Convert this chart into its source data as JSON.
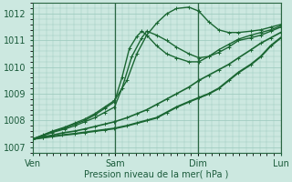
{
  "background_color": "#cce8e0",
  "plot_bg_color": "#cce8e0",
  "grid_color": "#99c8bc",
  "line_color": "#1a6632",
  "xlabel": "Pression niveau de la mer( hPa )",
  "ylim": [
    1006.8,
    1012.4
  ],
  "yticks": [
    1007,
    1008,
    1009,
    1010,
    1011,
    1012
  ],
  "xtick_positions": [
    0,
    0.333,
    0.667,
    1.0
  ],
  "xtick_labels": [
    "Ven",
    "Sam",
    "Dim",
    "Lun"
  ],
  "vlines": [
    0.333,
    0.667,
    1.0
  ],
  "lines": [
    {
      "x": [
        0.0,
        0.04,
        0.08,
        0.12,
        0.17,
        0.21,
        0.25,
        0.29,
        0.33,
        0.38,
        0.42,
        0.46,
        0.5,
        0.54,
        0.58,
        0.63,
        0.67,
        0.71,
        0.75,
        0.79,
        0.83,
        0.88,
        0.92,
        0.96,
        1.0
      ],
      "y": [
        1007.3,
        1007.35,
        1007.4,
        1007.45,
        1007.5,
        1007.55,
        1007.6,
        1007.65,
        1007.7,
        1007.8,
        1007.9,
        1008.0,
        1008.1,
        1008.3,
        1008.5,
        1008.7,
        1008.85,
        1009.0,
        1009.2,
        1009.5,
        1009.8,
        1010.1,
        1010.4,
        1010.8,
        1011.1
      ],
      "lw": 1.5
    },
    {
      "x": [
        0.0,
        0.04,
        0.08,
        0.12,
        0.17,
        0.21,
        0.25,
        0.29,
        0.33,
        0.38,
        0.42,
        0.46,
        0.5,
        0.54,
        0.58,
        0.63,
        0.67,
        0.71,
        0.75,
        0.79,
        0.83,
        0.88,
        0.92,
        0.96,
        1.0
      ],
      "y": [
        1007.3,
        1007.38,
        1007.45,
        1007.53,
        1007.6,
        1007.68,
        1007.77,
        1007.86,
        1007.95,
        1008.1,
        1008.25,
        1008.4,
        1008.6,
        1008.8,
        1009.0,
        1009.25,
        1009.5,
        1009.7,
        1009.9,
        1010.1,
        1010.35,
        1010.65,
        1010.9,
        1011.1,
        1011.3
      ],
      "lw": 1.2
    },
    {
      "x": [
        0.0,
        0.04,
        0.08,
        0.13,
        0.17,
        0.21,
        0.25,
        0.29,
        0.33,
        0.36,
        0.4,
        0.44,
        0.46,
        0.5,
        0.54,
        0.58,
        0.63,
        0.67,
        0.71,
        0.75,
        0.79,
        0.83,
        0.88,
        0.92,
        0.96,
        1.0
      ],
      "y": [
        1007.3,
        1007.42,
        1007.55,
        1007.68,
        1007.8,
        1007.95,
        1008.1,
        1008.3,
        1008.5,
        1009.2,
        1010.4,
        1011.1,
        1011.35,
        1011.2,
        1011.0,
        1010.75,
        1010.5,
        1010.35,
        1010.4,
        1010.55,
        1010.75,
        1011.0,
        1011.1,
        1011.2,
        1011.35,
        1011.5
      ],
      "lw": 1.0
    },
    {
      "x": [
        0.0,
        0.04,
        0.08,
        0.13,
        0.17,
        0.21,
        0.25,
        0.29,
        0.33,
        0.36,
        0.39,
        0.42,
        0.44,
        0.46,
        0.5,
        0.54,
        0.58,
        0.63,
        0.67,
        0.71,
        0.75,
        0.79,
        0.83,
        0.88,
        0.92,
        0.96,
        1.0
      ],
      "y": [
        1007.3,
        1007.44,
        1007.58,
        1007.72,
        1007.86,
        1008.0,
        1008.2,
        1008.45,
        1008.7,
        1009.6,
        1010.7,
        1011.15,
        1011.35,
        1011.2,
        1010.8,
        1010.5,
        1010.35,
        1010.2,
        1010.2,
        1010.4,
        1010.65,
        1010.85,
        1011.05,
        1011.2,
        1011.3,
        1011.4,
        1011.55
      ],
      "lw": 1.0
    },
    {
      "x": [
        0.0,
        0.04,
        0.08,
        0.13,
        0.17,
        0.21,
        0.25,
        0.29,
        0.33,
        0.38,
        0.42,
        0.46,
        0.5,
        0.54,
        0.58,
        0.63,
        0.67,
        0.71,
        0.75,
        0.79,
        0.83,
        0.88,
        0.92,
        0.96,
        1.0
      ],
      "y": [
        1007.3,
        1007.45,
        1007.6,
        1007.75,
        1007.9,
        1008.05,
        1008.25,
        1008.5,
        1008.75,
        1009.5,
        1010.5,
        1011.2,
        1011.65,
        1012.0,
        1012.2,
        1012.25,
        1012.1,
        1011.7,
        1011.4,
        1011.3,
        1011.3,
        1011.35,
        1011.4,
        1011.5,
        1011.6
      ],
      "lw": 1.0
    }
  ]
}
